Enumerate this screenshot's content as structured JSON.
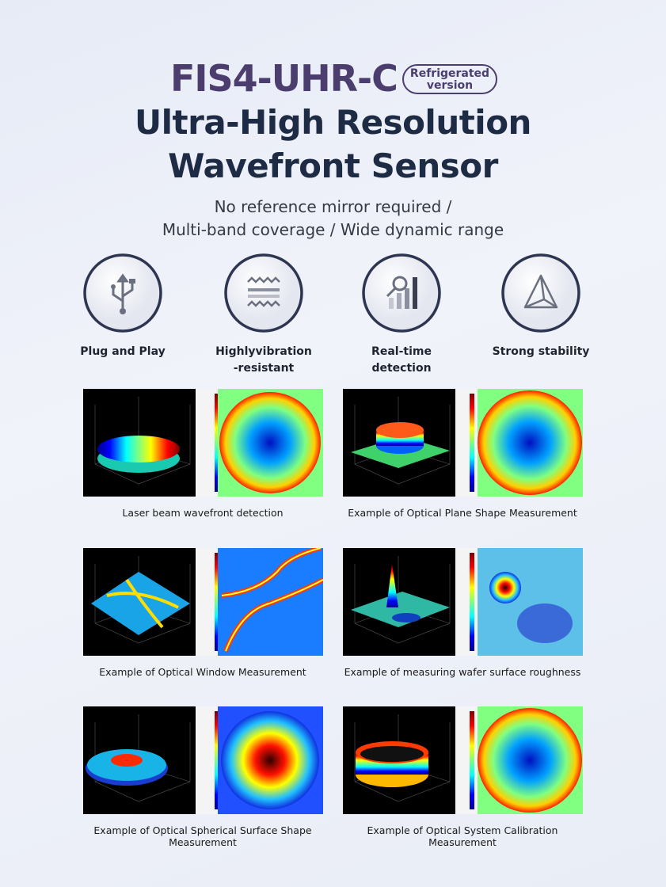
{
  "header": {
    "title": "FIS4-UHR-C",
    "badge": [
      "Refrigerated",
      "version"
    ],
    "subtitle": [
      "Ultra-High Resolution",
      "Wavefront Sensor"
    ],
    "tagline": [
      "No reference mirror required /",
      "Multi-band coverage / Wide dynamic range"
    ]
  },
  "features": [
    {
      "label": [
        "Plug and Play"
      ]
    },
    {
      "label": [
        "Highlyvibration",
        "-resistant"
      ]
    },
    {
      "label": [
        "Real-time",
        "detection"
      ]
    },
    {
      "label": [
        "Strong stability"
      ]
    }
  ],
  "examples": [
    {
      "caption": "Laser beam wavefront detection"
    },
    {
      "caption": "Example of Optical Plane Shape Measurement"
    },
    {
      "caption": "Example of Optical Window Measurement"
    },
    {
      "caption": "Example of measuring wafer surface roughness"
    },
    {
      "caption": "Example of Optical Spherical Surface Shape Measurement"
    },
    {
      "caption": "Example of Optical System Calibration Measurement"
    }
  ]
}
